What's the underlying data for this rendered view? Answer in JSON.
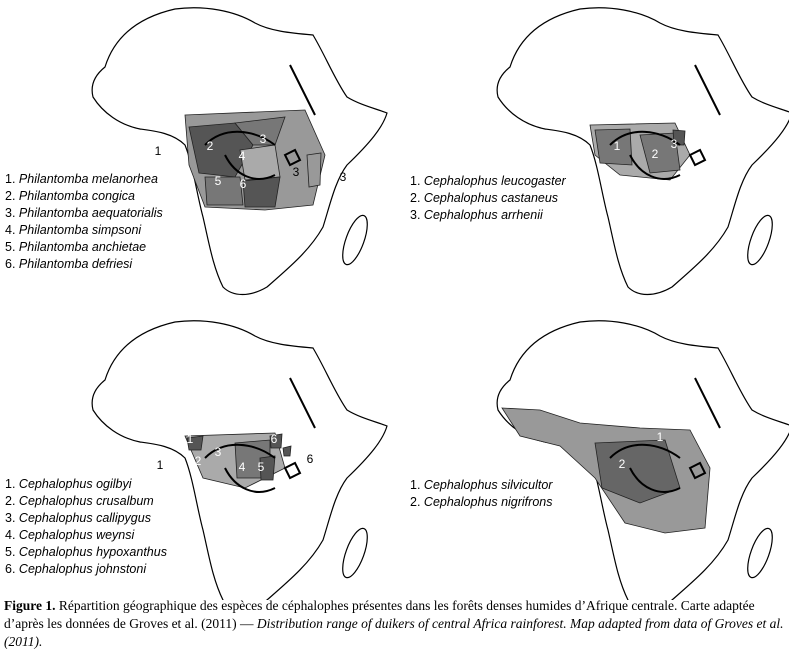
{
  "panels": [
    {
      "map_labels": [
        "1",
        "2",
        "3",
        "4",
        "5",
        "6",
        "3",
        "3"
      ],
      "legend": [
        {
          "number": "1.",
          "name": "Philantomba melanorhea"
        },
        {
          "number": "2.",
          "name": "Philantomba congica"
        },
        {
          "number": "3.",
          "name": "Philantomba aequatorialis"
        },
        {
          "number": "4.",
          "name": "Philantomba simpsoni"
        },
        {
          "number": "5.",
          "name": "Philantomba anchietae"
        },
        {
          "number": "6.",
          "name": "Philantomba defriesi"
        }
      ]
    },
    {
      "map_labels": [
        "1",
        "2",
        "3"
      ],
      "legend": [
        {
          "number": "1.",
          "name": "Cephalophus leucogaster"
        },
        {
          "number": "2.",
          "name": "Cephalophus castaneus"
        },
        {
          "number": "3.",
          "name": "Cephalophus arrhenii"
        }
      ]
    },
    {
      "map_labels": [
        "1",
        "1",
        "2",
        "3",
        "4",
        "5",
        "6",
        "6"
      ],
      "legend": [
        {
          "number": "1.",
          "name": "Cephalophus ogilbyi"
        },
        {
          "number": "2.",
          "name": "Cephalophus crusalbum"
        },
        {
          "number": "3.",
          "name": "Cephalophus callipygus"
        },
        {
          "number": "4.",
          "name": "Cephalophus weynsi"
        },
        {
          "number": "5.",
          "name": "Cephalophus hypoxanthus"
        },
        {
          "number": "6.",
          "name": "Cephalophus johnstoni"
        }
      ]
    },
    {
      "map_labels": [
        "1",
        "2"
      ],
      "legend": [
        {
          "number": "1.",
          "name": "Cephalophus silvicultor"
        },
        {
          "number": "2.",
          "name": "Cephalophus nigrifrons"
        }
      ]
    }
  ],
  "caption": {
    "label": "Figure 1.",
    "french": "Répartition géographique des espèces de céphalophes présentes dans les forêts denses humides d’Afrique centrale. Carte adaptée d’après les données de Groves et al. (2011) —",
    "english": "Distribution range of duikers of central Africa rainforest. Map adapted from data of Groves et al. (2011)."
  }
}
